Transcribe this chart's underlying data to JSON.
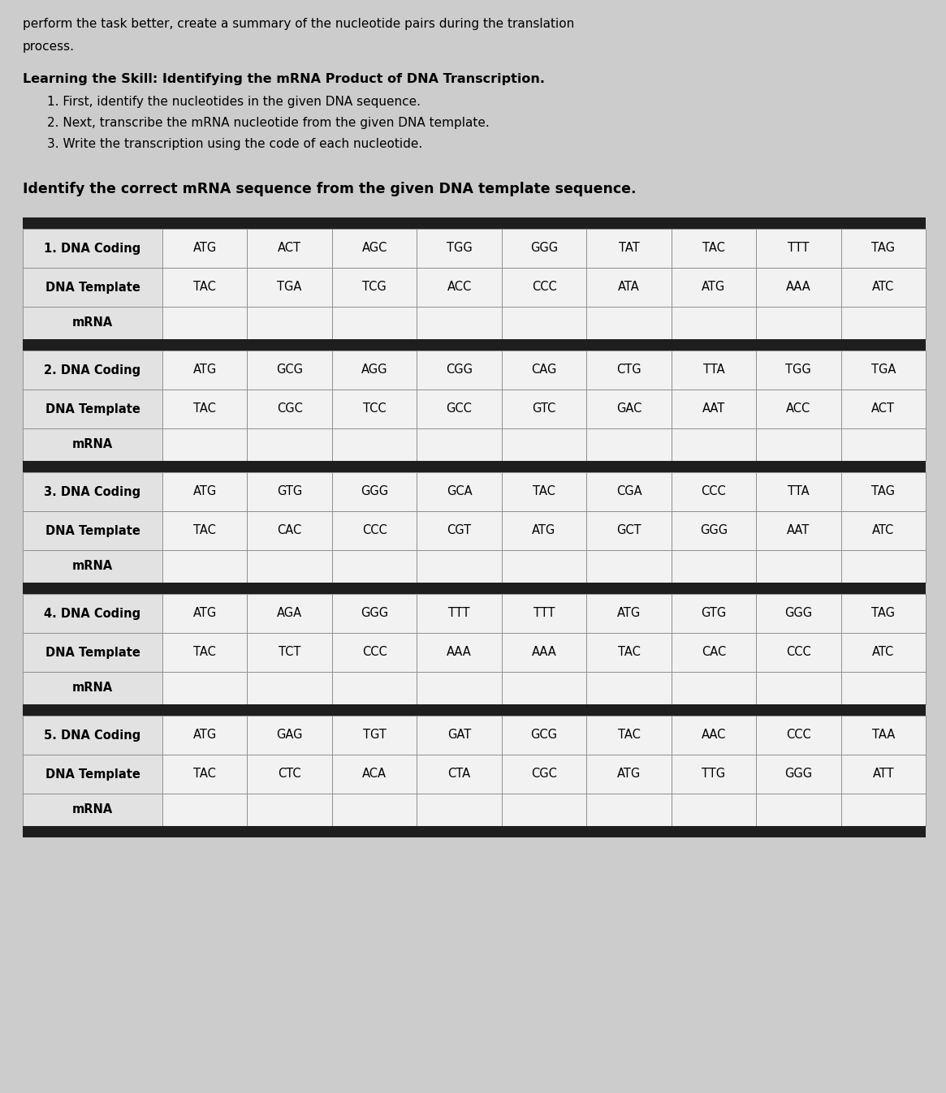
{
  "intro_text_line1": "perform the task better, create a summary of the nucleotide pairs during the translation",
  "intro_text_line2": "process.",
  "skill_title": "Learning the Skill: Identifying the mRNA Product of DNA Transcription.",
  "skill_steps": [
    "1. First, identify the nucleotides in the given DNA sequence.",
    "2. Next, transcribe the mRNA nucleotide from the given DNA template.",
    "3. Write the transcription using the code of each nucleotide."
  ],
  "table_title": "Identify the correct mRNA sequence from the given DNA template sequence.",
  "background_color": "#cccccc",
  "header_bg": "#1e1e1e",
  "cell_bg_label": "#e2e2e2",
  "cell_bg_data": "#f2f2f2",
  "sequences": [
    {
      "number": 1,
      "dna_coding": [
        "ATG",
        "ACT",
        "AGC",
        "TGG",
        "GGG",
        "TAT",
        "TAC",
        "TTT",
        "TAG"
      ],
      "dna_template": [
        "TAC",
        "TGA",
        "TCG",
        "ACC",
        "CCC",
        "ATA",
        "ATG",
        "AAA",
        "ATC"
      ],
      "mrna": [
        "",
        "",
        "",
        "",
        "",
        "",
        "",
        "",
        ""
      ]
    },
    {
      "number": 2,
      "dna_coding": [
        "ATG",
        "GCG",
        "AGG",
        "CGG",
        "CAG",
        "CTG",
        "TTA",
        "TGG",
        "TGA"
      ],
      "dna_template": [
        "TAC",
        "CGC",
        "TCC",
        "GCC",
        "GTC",
        "GAC",
        "AAT",
        "ACC",
        "ACT"
      ],
      "mrna": [
        "",
        "",
        "",
        "",
        "",
        "",
        "",
        "",
        ""
      ]
    },
    {
      "number": 3,
      "dna_coding": [
        "ATG",
        "GTG",
        "GGG",
        "GCA",
        "TAC",
        "CGA",
        "CCC",
        "TTA",
        "TAG"
      ],
      "dna_template": [
        "TAC",
        "CAC",
        "CCC",
        "CGT",
        "ATG",
        "GCT",
        "GGG",
        "AAT",
        "ATC"
      ],
      "mrna": [
        "",
        "",
        "",
        "",
        "",
        "",
        "",
        "",
        ""
      ]
    },
    {
      "number": 4,
      "dna_coding": [
        "ATG",
        "AGA",
        "GGG",
        "TTT",
        "TTT",
        "ATG",
        "GTG",
        "GGG",
        "TAG"
      ],
      "dna_template": [
        "TAC",
        "TCT",
        "CCC",
        "AAA",
        "AAA",
        "TAC",
        "CAC",
        "CCC",
        "ATC"
      ],
      "mrna": [
        "",
        "",
        "",
        "",
        "",
        "",
        "",
        "",
        ""
      ]
    },
    {
      "number": 5,
      "dna_coding": [
        "ATG",
        "GAG",
        "TGT",
        "GAT",
        "GCG",
        "TAC",
        "AAC",
        "CCC",
        "TAA"
      ],
      "dna_template": [
        "TAC",
        "CTC",
        "ACA",
        "CTA",
        "CGC",
        "ATG",
        "TTG",
        "GGG",
        "ATT"
      ],
      "mrna": [
        "",
        "",
        "",
        "",
        "",
        "",
        "",
        "",
        ""
      ]
    }
  ]
}
